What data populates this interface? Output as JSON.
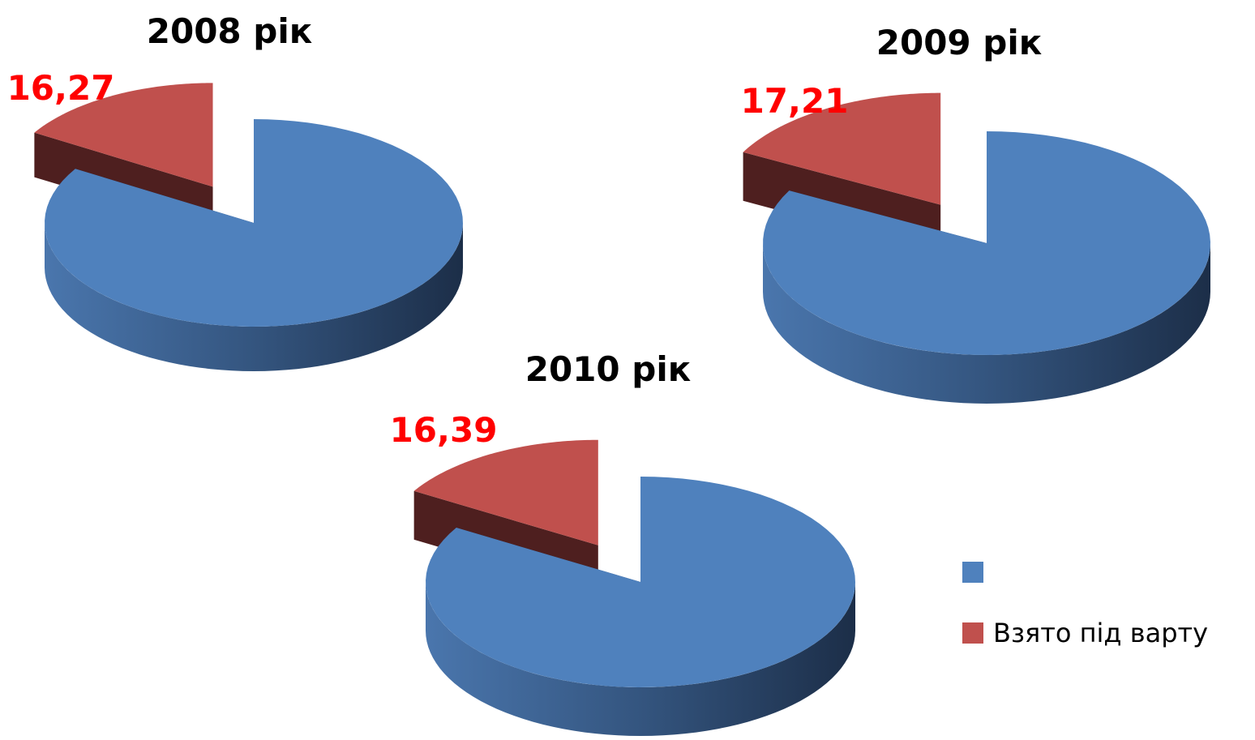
{
  "chart_data": [
    {
      "type": "pie",
      "title": "2008 рік",
      "values": [
        83.73,
        16.27
      ],
      "value_labels": [
        null,
        "16,27"
      ],
      "colors": [
        "#4f81bd",
        "#c0504d"
      ]
    },
    {
      "type": "pie",
      "title": "2009 рік",
      "values": [
        82.79,
        17.21
      ],
      "value_labels": [
        null,
        "17,21"
      ],
      "colors": [
        "#4f81bd",
        "#c0504d"
      ]
    },
    {
      "type": "pie",
      "title": "2010 рік",
      "values": [
        83.61,
        16.39
      ],
      "value_labels": [
        null,
        "16,39"
      ],
      "colors": [
        "#4f81bd",
        "#c0504d"
      ]
    }
  ],
  "legend": {
    "categories": [
      null,
      "Взято під варту"
    ],
    "colors": [
      "#4f81bd",
      "#c0504d"
    ]
  }
}
